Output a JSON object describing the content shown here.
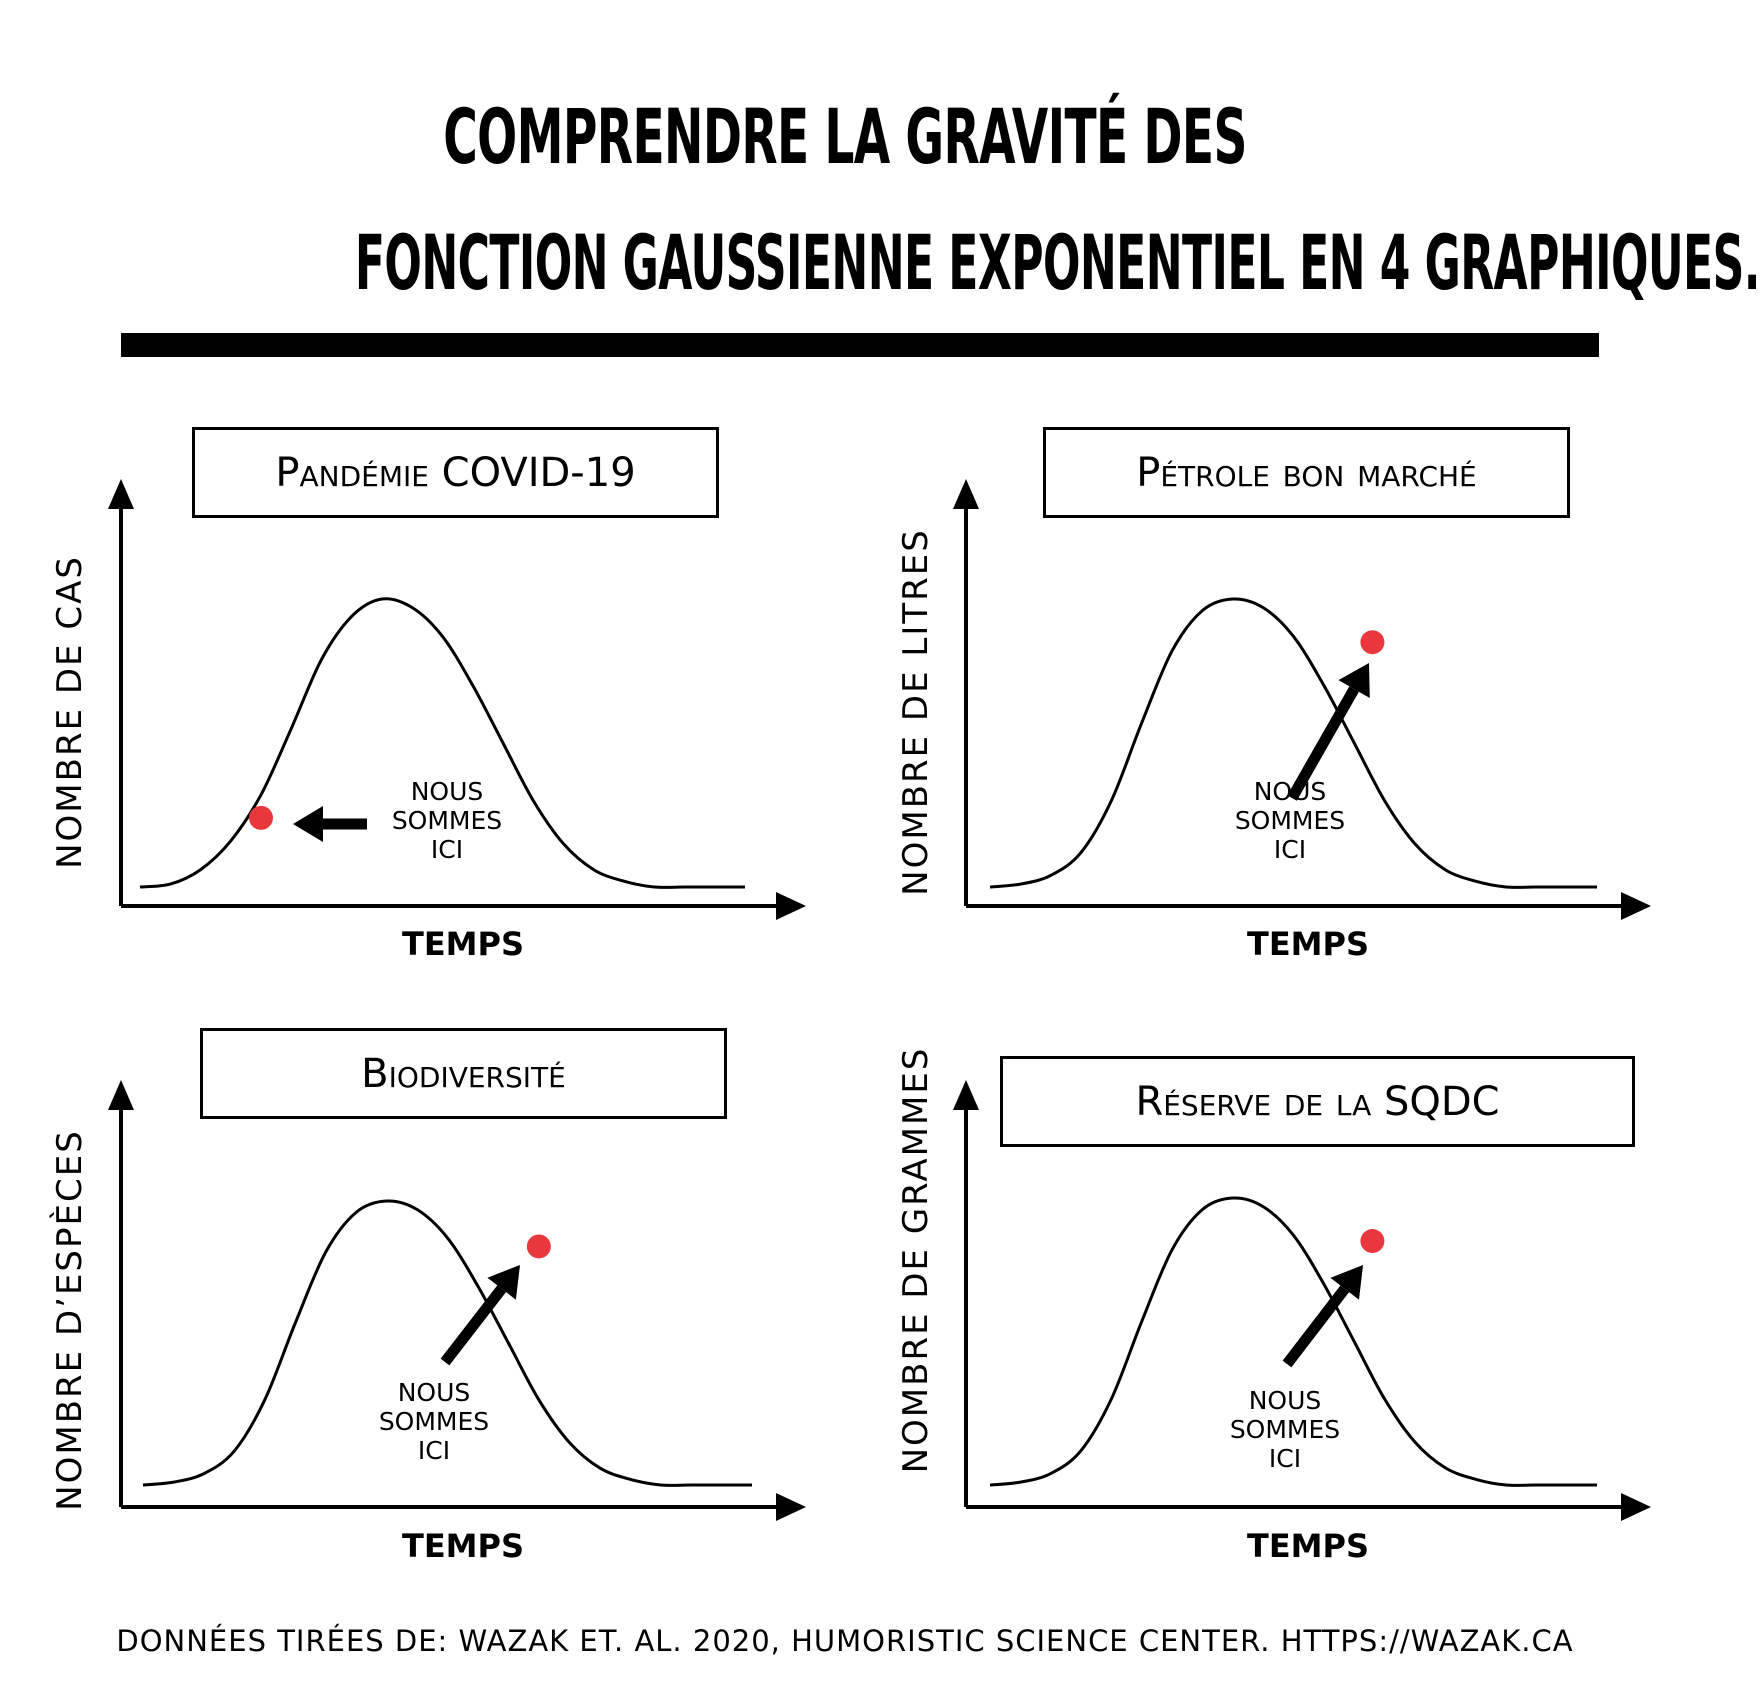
{
  "title": {
    "line1": "COMPRENDRE LA GRAVITÉ DES",
    "line2": "FONCTION GAUSSIENNE EXPONENTIEL EN 4 GRAPHIQUES."
  },
  "footer": "DONNÉES TIRÉES DE: WAZAK ET. AL. 2020, HUMORISTIC SCIENCE CENTER. HTTPS://WAZAK.CA",
  "marker_color": "#e8383d",
  "chart_data": [
    {
      "type": "line",
      "title": "Pandémie COVID-19",
      "xlabel": "TEMPS",
      "ylabel": "NOMBRE DE CAS",
      "series": [
        {
          "x": [
            0,
            0.05,
            0.1,
            0.15,
            0.2,
            0.25,
            0.3,
            0.35,
            0.4,
            0.45,
            0.5,
            0.55,
            0.6,
            0.65,
            0.7,
            0.75,
            0.8,
            0.85,
            0.9,
            0.95,
            1
          ],
          "y": [
            0,
            0.01,
            0.06,
            0.16,
            0.32,
            0.55,
            0.79,
            0.94,
            1,
            0.97,
            0.87,
            0.7,
            0.5,
            0.3,
            0.15,
            0.06,
            0.02,
            0,
            0,
            0,
            0
          ]
        }
      ],
      "marker": {
        "x": 0.2,
        "y": 0.24
      },
      "annotation": "NOUS\nSOMMES\nICI",
      "grid": false
    },
    {
      "type": "line",
      "title": "Pétrole bon marché",
      "xlabel": "TEMPS",
      "ylabel": "NOMBRE DE LITRES",
      "series": [
        {
          "x": [
            0,
            0.05,
            0.1,
            0.15,
            0.2,
            0.25,
            0.3,
            0.35,
            0.4,
            0.45,
            0.5,
            0.55,
            0.6,
            0.65,
            0.7,
            0.75,
            0.8,
            0.85,
            0.9,
            0.95,
            1
          ],
          "y": [
            0,
            0.01,
            0.04,
            0.12,
            0.3,
            0.57,
            0.82,
            0.96,
            1,
            0.97,
            0.87,
            0.7,
            0.5,
            0.3,
            0.15,
            0.06,
            0.02,
            0,
            0,
            0,
            0
          ]
        }
      ],
      "marker": {
        "x": 0.63,
        "y": 0.85
      },
      "annotation": "NOUS\nSOMMES\nICI",
      "grid": false
    },
    {
      "type": "line",
      "title": "Biodiversité",
      "xlabel": "TEMPS",
      "ylabel": "NOMBRE D’ESPÈCES",
      "series": [
        {
          "x": [
            0,
            0.05,
            0.1,
            0.15,
            0.2,
            0.25,
            0.3,
            0.35,
            0.4,
            0.45,
            0.5,
            0.55,
            0.6,
            0.65,
            0.7,
            0.75,
            0.8,
            0.85,
            0.9,
            0.95,
            1
          ],
          "y": [
            0,
            0.01,
            0.04,
            0.12,
            0.3,
            0.57,
            0.82,
            0.96,
            1,
            0.97,
            0.87,
            0.7,
            0.5,
            0.3,
            0.15,
            0.06,
            0.02,
            0,
            0,
            0,
            0
          ]
        }
      ],
      "marker": {
        "x": 0.65,
        "y": 0.84
      },
      "annotation": "NOUS\nSOMMES\nICI",
      "grid": false
    },
    {
      "type": "line",
      "title": "Réserve de la SQDC",
      "xlabel": "TEMPS",
      "ylabel": "NOMBRE DE GRAMMES",
      "series": [
        {
          "x": [
            0,
            0.05,
            0.1,
            0.15,
            0.2,
            0.25,
            0.3,
            0.35,
            0.4,
            0.45,
            0.5,
            0.55,
            0.6,
            0.65,
            0.7,
            0.75,
            0.8,
            0.85,
            0.9,
            0.95,
            1
          ],
          "y": [
            0,
            0.01,
            0.04,
            0.12,
            0.3,
            0.57,
            0.82,
            0.96,
            1,
            0.97,
            0.87,
            0.7,
            0.5,
            0.3,
            0.15,
            0.06,
            0.02,
            0,
            0,
            0,
            0
          ]
        }
      ],
      "marker": {
        "x": 0.63,
        "y": 0.85
      },
      "annotation": "NOUS\nSOMMES\nICI",
      "grid": false
    }
  ]
}
